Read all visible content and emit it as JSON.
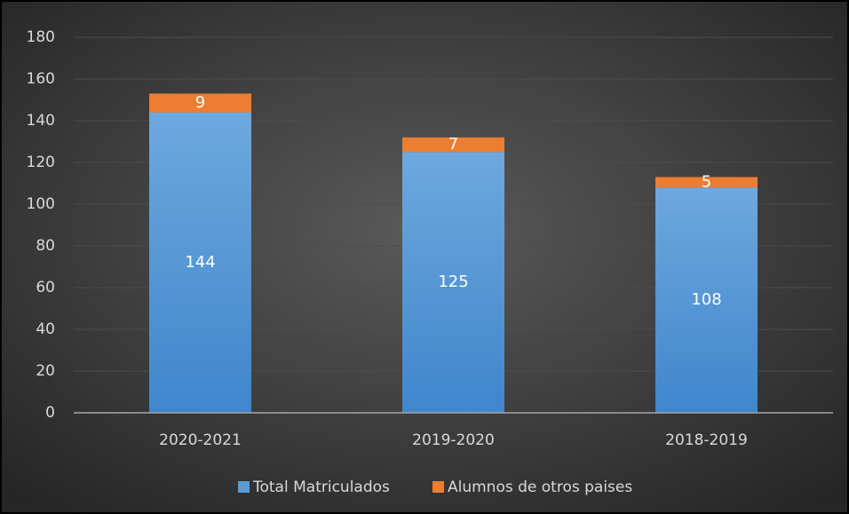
{
  "chart_data": {
    "type": "stacked_bar",
    "categories": [
      "2020-2021",
      "2019-2020",
      "2018-2019"
    ],
    "series": [
      {
        "name": "Total Matriculados",
        "color": "#5b9bd5",
        "values": [
          144,
          125,
          108
        ]
      },
      {
        "name": "Alumnos de otros paises",
        "color": "#ed7d31",
        "values": [
          9,
          7,
          5
        ]
      }
    ],
    "ylim": [
      0,
      180
    ],
    "yticks": [
      0,
      20,
      40,
      60,
      80,
      100,
      120,
      140,
      160,
      180
    ],
    "grid": true,
    "legend": "bottom"
  }
}
